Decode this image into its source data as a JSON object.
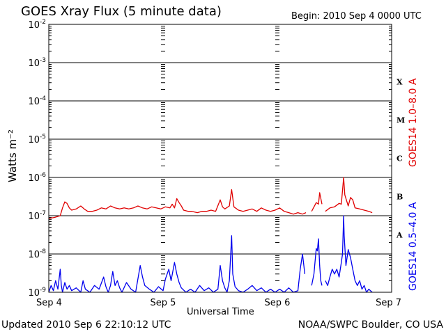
{
  "header": {
    "title": "GOES Xray Flux (5 minute data)",
    "begin": "Begin:  2010 Sep 4 0000 UTC"
  },
  "footer": {
    "updated": "Updated 2010 Sep  6 22:10:12 UTC",
    "credit": "NOAA/SWPC Boulder, CO USA"
  },
  "colors": {
    "long": "#e00000",
    "short": "#0000ee",
    "axis": "#000000"
  },
  "chart_data": {
    "type": "line",
    "title": "GOES Xray Flux (5 minute data)",
    "xlabel": "Universal Time",
    "ylabel": "Watts m⁻²",
    "yscale": "log",
    "ylim": [
      1e-09,
      0.01
    ],
    "xlim_days": [
      0,
      3
    ],
    "x_unit": "days after 2010 Sep 4 0000 UTC",
    "x_ticks": [
      {
        "label": "Sep 4",
        "day": 0
      },
      {
        "label": "Sep 5",
        "day": 1
      },
      {
        "label": "Sep 6",
        "day": 2
      },
      {
        "label": "Sep 7",
        "day": 3
      }
    ],
    "y_ticks": [
      {
        "base": "10",
        "exp": "-9",
        "value": 1e-09
      },
      {
        "base": "10",
        "exp": "-8",
        "value": 1e-08
      },
      {
        "base": "10",
        "exp": "-7",
        "value": 1e-07
      },
      {
        "base": "10",
        "exp": "-6",
        "value": 1e-06
      },
      {
        "base": "10",
        "exp": "-5",
        "value": 1e-05
      },
      {
        "base": "10",
        "exp": "-4",
        "value": 0.0001
      },
      {
        "base": "10",
        "exp": "-3",
        "value": 0.001
      },
      {
        "base": "10",
        "exp": "-2",
        "value": 0.01
      }
    ],
    "flare_classes": [
      {
        "label": "X",
        "value": 0.000316
      },
      {
        "label": "M",
        "value": 3.16e-05
      },
      {
        "label": "C",
        "value": 3.16e-06
      },
      {
        "label": "B",
        "value": 3.16e-07
      },
      {
        "label": "A",
        "value": 3.16e-08
      }
    ],
    "grid": true,
    "series": [
      {
        "name": "GOES14 1.0–8.0 A",
        "color": "#e00000",
        "points": [
          [
            0.0,
            8.5e-08
          ],
          [
            0.05,
            9e-08
          ],
          [
            0.1,
            1e-07
          ],
          [
            0.12,
            1.6e-07
          ],
          [
            0.14,
            2.3e-07
          ],
          [
            0.16,
            2.1e-07
          ],
          [
            0.18,
            1.6e-07
          ],
          [
            0.2,
            1.4e-07
          ],
          [
            0.24,
            1.5e-07
          ],
          [
            0.28,
            1.8e-07
          ],
          [
            0.31,
            1.5e-07
          ],
          [
            0.34,
            1.3e-07
          ],
          [
            0.38,
            1.3e-07
          ],
          [
            0.42,
            1.4e-07
          ],
          [
            0.46,
            1.6e-07
          ],
          [
            0.5,
            1.5e-07
          ],
          [
            0.54,
            1.8e-07
          ],
          [
            0.58,
            1.6e-07
          ],
          [
            0.62,
            1.5e-07
          ],
          [
            0.66,
            1.6e-07
          ],
          [
            0.7,
            1.5e-07
          ],
          [
            0.74,
            1.6e-07
          ],
          [
            0.78,
            1.8e-07
          ],
          [
            0.82,
            1.6e-07
          ],
          [
            0.86,
            1.5e-07
          ],
          [
            0.9,
            1.7e-07
          ],
          [
            0.94,
            1.6e-07
          ],
          [
            0.98,
            1.5e-07
          ],
          [
            1.02,
            1.7e-07
          ],
          [
            1.06,
            1.6e-07
          ],
          [
            1.08,
            2e-07
          ],
          [
            1.1,
            1.6e-07
          ],
          [
            1.12,
            2.8e-07
          ],
          [
            1.14,
            2.2e-07
          ],
          [
            1.16,
            1.8e-07
          ],
          [
            1.18,
            1.4e-07
          ],
          [
            1.22,
            1.3e-07
          ],
          [
            1.25,
            1.3e-07
          ],
          [
            1.3,
            1.2e-07
          ],
          [
            1.34,
            1.3e-07
          ],
          [
            1.38,
            1.3e-07
          ],
          [
            1.42,
            1.4e-07
          ],
          [
            1.46,
            1.3e-07
          ],
          [
            1.5,
            2.6e-07
          ],
          [
            1.52,
            1.7e-07
          ],
          [
            1.54,
            1.5e-07
          ],
          [
            1.58,
            1.8e-07
          ],
          [
            1.6,
            4.8e-07
          ],
          [
            1.62,
            1.7e-07
          ],
          [
            1.66,
            1.4e-07
          ],
          [
            1.7,
            1.3e-07
          ],
          [
            1.74,
            1.4e-07
          ],
          [
            1.78,
            1.5e-07
          ],
          [
            1.82,
            1.3e-07
          ],
          [
            1.86,
            1.6e-07
          ],
          [
            1.9,
            1.4e-07
          ],
          [
            1.94,
            1.3e-07
          ],
          [
            1.98,
            1.4e-07
          ],
          [
            2.02,
            1.6e-07
          ],
          [
            2.06,
            1.3e-07
          ],
          [
            2.1,
            1.2e-07
          ],
          [
            2.14,
            1.1e-07
          ],
          [
            2.18,
            1.2e-07
          ],
          [
            2.22,
            1.1e-07
          ],
          [
            2.25,
            1.2e-07
          ],
          [
            2.26,
            null
          ],
          [
            2.3,
            1.3e-07
          ],
          [
            2.34,
            2.2e-07
          ],
          [
            2.36,
            2e-07
          ],
          [
            2.37,
            4e-07
          ],
          [
            2.39,
            2e-07
          ],
          [
            2.4,
            null
          ],
          [
            2.42,
            1.3e-07
          ],
          [
            2.46,
            1.6e-07
          ],
          [
            2.5,
            1.7e-07
          ],
          [
            2.54,
            2.1e-07
          ],
          [
            2.56,
            2e-07
          ],
          [
            2.58,
            1e-06
          ],
          [
            2.59,
            3.5e-07
          ],
          [
            2.62,
            1.8e-07
          ],
          [
            2.64,
            3e-07
          ],
          [
            2.66,
            2.6e-07
          ],
          [
            2.68,
            1.6e-07
          ],
          [
            2.72,
            1.5e-07
          ],
          [
            2.76,
            1.4e-07
          ],
          [
            2.8,
            1.3e-07
          ],
          [
            2.83,
            1.2e-07
          ]
        ]
      },
      {
        "name": "GOES14 0.5–4.0 A",
        "color": "#0000ee",
        "points": [
          [
            0.0,
            1e-09
          ],
          [
            0.02,
            1.5e-09
          ],
          [
            0.04,
            1.1e-09
          ],
          [
            0.06,
            2e-09
          ],
          [
            0.08,
            1.2e-09
          ],
          [
            0.1,
            4e-09
          ],
          [
            0.11,
            1.5e-09
          ],
          [
            0.12,
            1e-09
          ],
          [
            0.14,
            1.8e-09
          ],
          [
            0.16,
            1.2e-09
          ],
          [
            0.18,
            1.5e-09
          ],
          [
            0.2,
            1.1e-09
          ],
          [
            0.24,
            1.3e-09
          ],
          [
            0.28,
            1e-09
          ],
          [
            0.3,
            2e-09
          ],
          [
            0.32,
            1.2e-09
          ],
          [
            0.36,
            1e-09
          ],
          [
            0.4,
            1.5e-09
          ],
          [
            0.44,
            1.2e-09
          ],
          [
            0.48,
            2.5e-09
          ],
          [
            0.5,
            1.4e-09
          ],
          [
            0.52,
            1e-09
          ],
          [
            0.54,
            1.5e-09
          ],
          [
            0.56,
            3.5e-09
          ],
          [
            0.58,
            1.5e-09
          ],
          [
            0.6,
            2e-09
          ],
          [
            0.62,
            1.3e-09
          ],
          [
            0.64,
            1e-09
          ],
          [
            0.68,
            1.8e-09
          ],
          [
            0.72,
            1.2e-09
          ],
          [
            0.76,
            1e-09
          ],
          [
            0.8,
            5e-09
          ],
          [
            0.82,
            2.5e-09
          ],
          [
            0.84,
            1.5e-09
          ],
          [
            0.88,
            1.2e-09
          ],
          [
            0.92,
            1e-09
          ],
          [
            0.96,
            1.4e-09
          ],
          [
            1.0,
            1.1e-09
          ],
          [
            1.02,
            2.2e-09
          ],
          [
            1.05,
            4e-09
          ],
          [
            1.07,
            2e-09
          ],
          [
            1.1,
            6e-09
          ],
          [
            1.12,
            3e-09
          ],
          [
            1.14,
            1.8e-09
          ],
          [
            1.16,
            1.3e-09
          ],
          [
            1.2,
            1e-09
          ],
          [
            1.24,
            1.2e-09
          ],
          [
            1.28,
            1e-09
          ],
          [
            1.32,
            1.5e-09
          ],
          [
            1.36,
            1.1e-09
          ],
          [
            1.4,
            1.3e-09
          ],
          [
            1.44,
            1e-09
          ],
          [
            1.48,
            1.2e-09
          ],
          [
            1.5,
            5e-09
          ],
          [
            1.52,
            2e-09
          ],
          [
            1.54,
            1.3e-09
          ],
          [
            1.56,
            1e-09
          ],
          [
            1.58,
            2e-09
          ],
          [
            1.6,
            3e-08
          ],
          [
            1.61,
            3e-09
          ],
          [
            1.63,
            1.4e-09
          ],
          [
            1.66,
            1.1e-09
          ],
          [
            1.7,
            1e-09
          ],
          [
            1.74,
            1.2e-09
          ],
          [
            1.78,
            1.5e-09
          ],
          [
            1.82,
            1.1e-09
          ],
          [
            1.86,
            1.3e-09
          ],
          [
            1.9,
            1e-09
          ],
          [
            1.94,
            1.2e-09
          ],
          [
            1.98,
            1e-09
          ],
          [
            2.02,
            1.2e-09
          ],
          [
            2.06,
            1e-09
          ],
          [
            2.1,
            1.3e-09
          ],
          [
            2.14,
            1e-09
          ],
          [
            2.18,
            1.1e-09
          ],
          [
            2.2,
            4e-09
          ],
          [
            2.22,
            1e-08
          ],
          [
            2.24,
            3e-09
          ],
          [
            2.25,
            null
          ],
          [
            2.3,
            1.5e-09
          ],
          [
            2.32,
            3e-09
          ],
          [
            2.34,
            1.4e-08
          ],
          [
            2.35,
            1.2e-08
          ],
          [
            2.36,
            2.5e-08
          ],
          [
            2.37,
            5e-09
          ],
          [
            2.38,
            2e-09
          ],
          [
            2.39,
            1.5e-09
          ],
          [
            2.4,
            null
          ],
          [
            2.42,
            2e-09
          ],
          [
            2.44,
            1.5e-09
          ],
          [
            2.46,
            2.5e-09
          ],
          [
            2.48,
            4e-09
          ],
          [
            2.5,
            3e-09
          ],
          [
            2.52,
            4e-09
          ],
          [
            2.54,
            2.5e-09
          ],
          [
            2.56,
            6e-09
          ],
          [
            2.57,
            1e-08
          ],
          [
            2.58,
            1e-07
          ],
          [
            2.585,
            3e-08
          ],
          [
            2.6,
            5e-09
          ],
          [
            2.62,
            1.3e-08
          ],
          [
            2.64,
            8e-09
          ],
          [
            2.66,
            4e-09
          ],
          [
            2.68,
            2e-09
          ],
          [
            2.7,
            1.5e-09
          ],
          [
            2.72,
            2e-09
          ],
          [
            2.74,
            1.2e-09
          ],
          [
            2.76,
            1.5e-09
          ],
          [
            2.78,
            1e-09
          ],
          [
            2.8,
            1.2e-09
          ],
          [
            2.83,
            1e-09
          ]
        ]
      }
    ]
  }
}
